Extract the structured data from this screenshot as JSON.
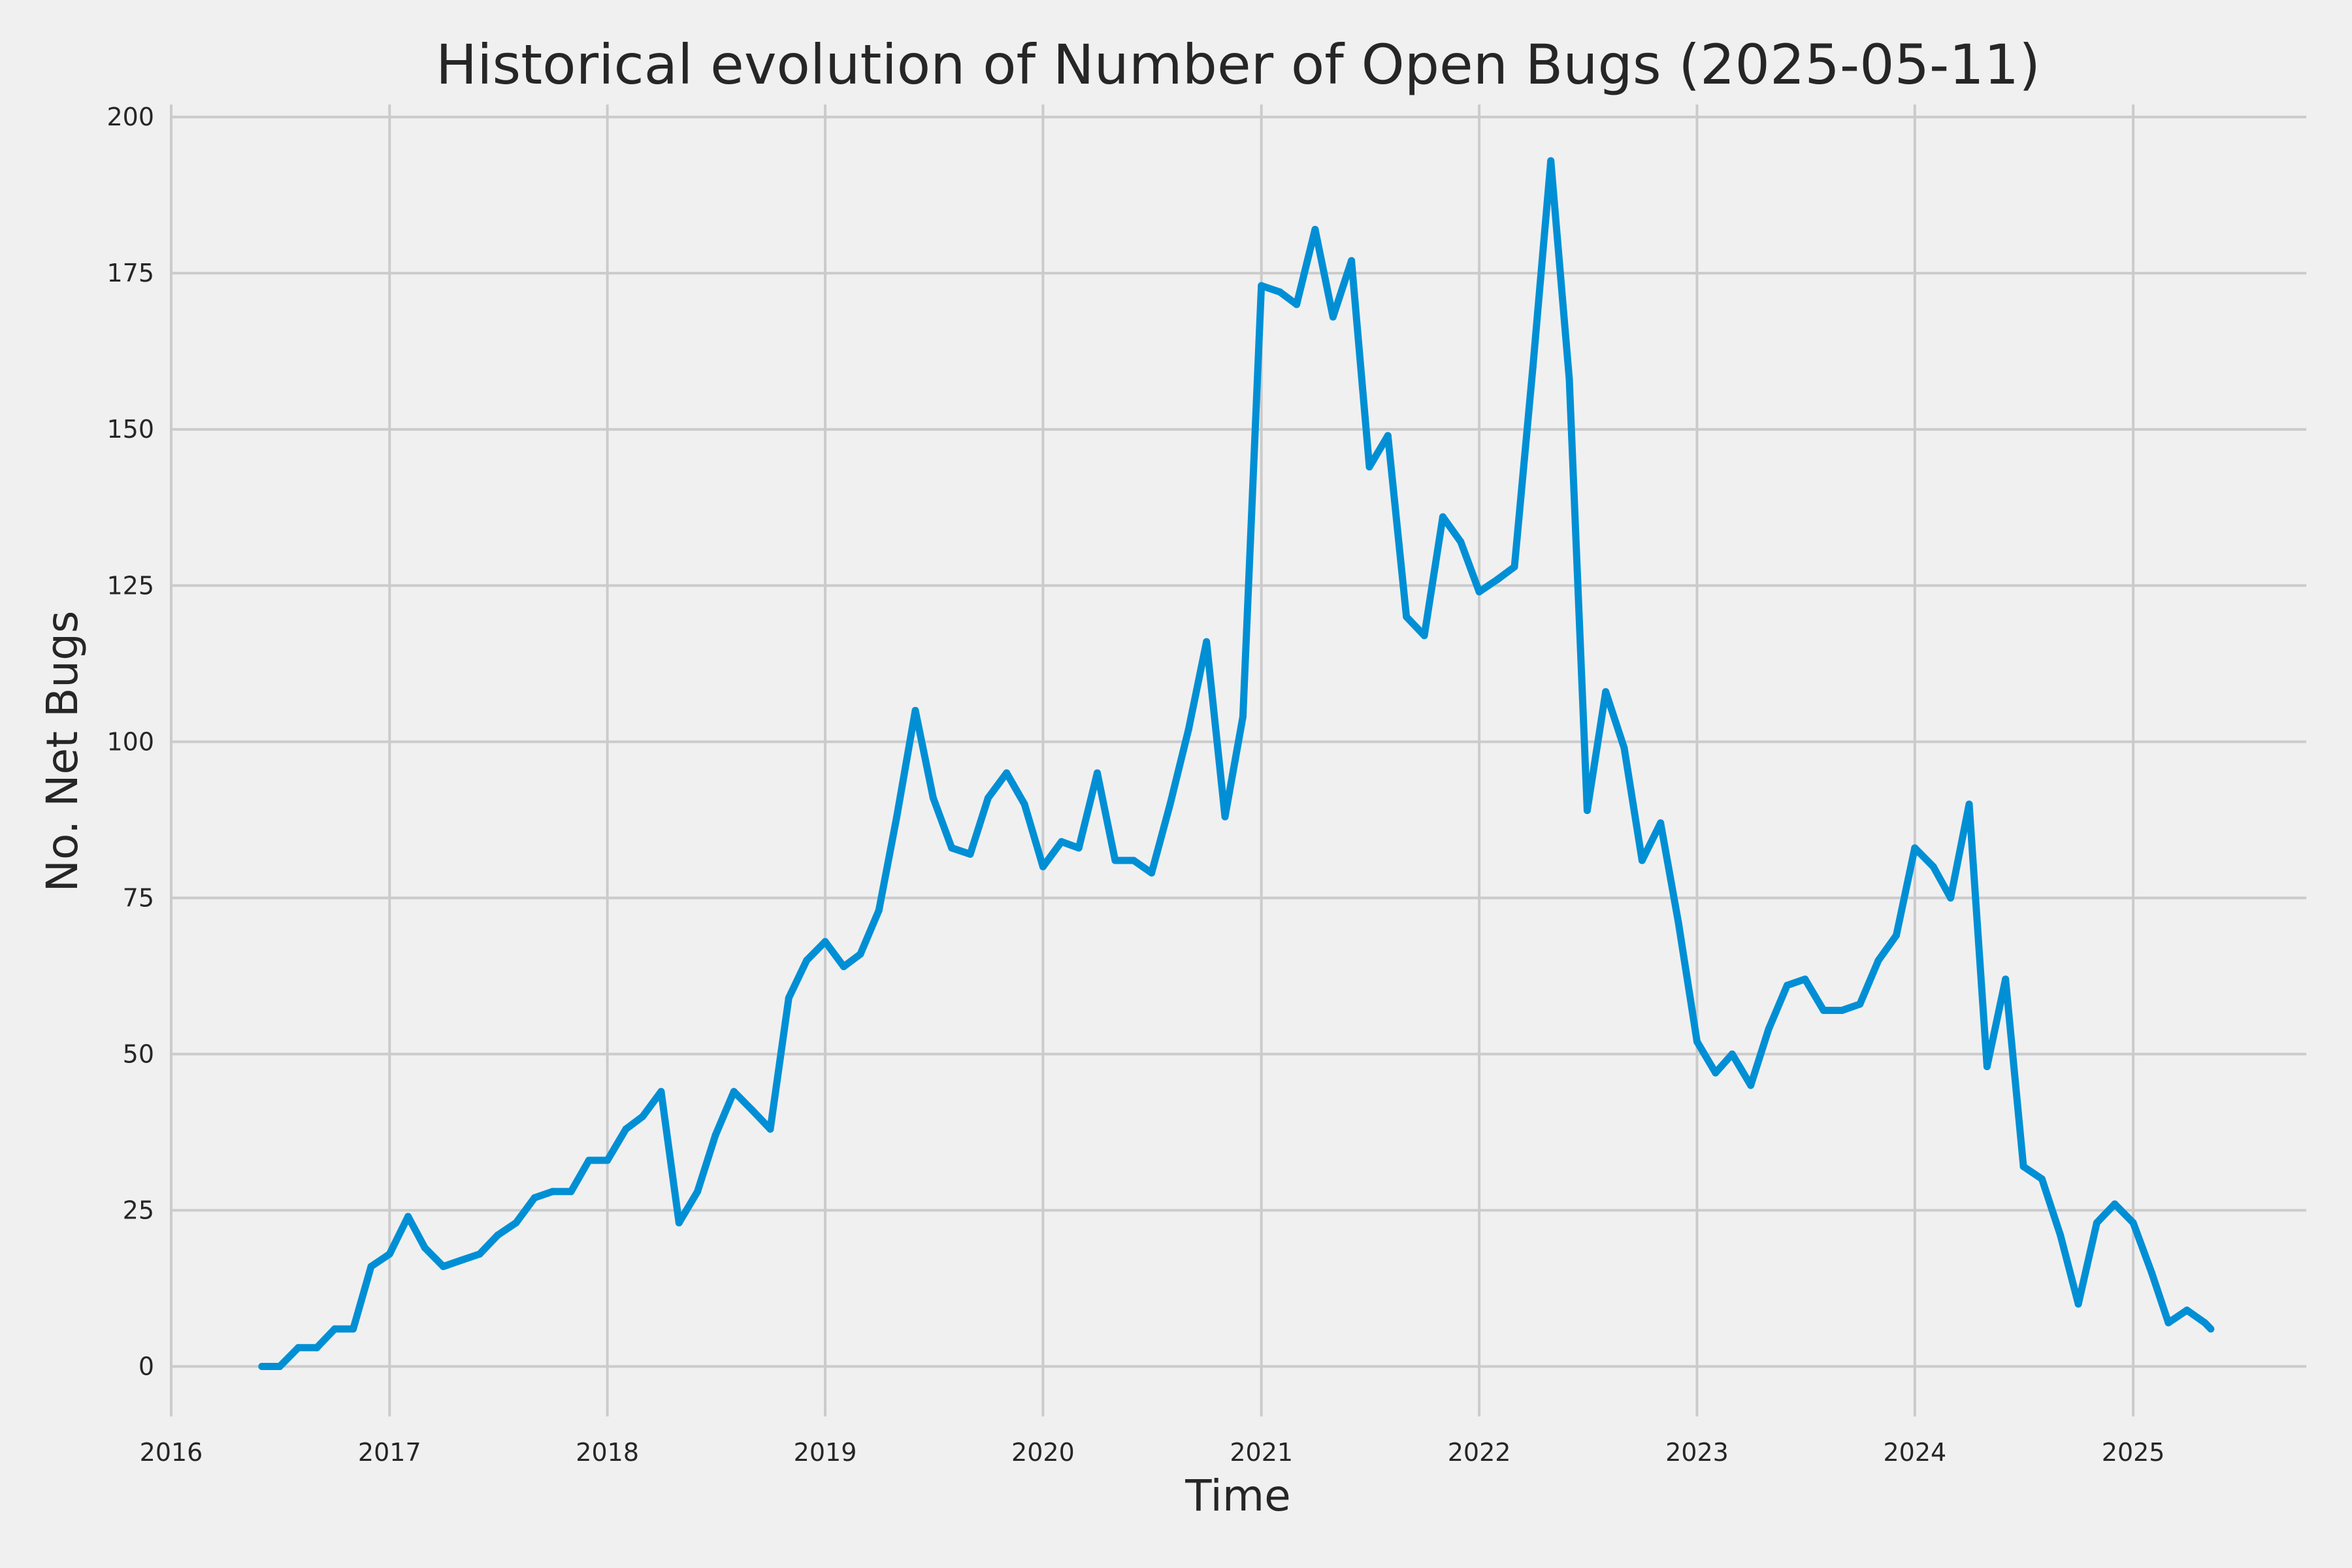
{
  "chart_data": {
    "type": "line",
    "title": "Historical evolution of Number of Open Bugs (2025-05-11)",
    "xlabel": "Time",
    "ylabel": "No. Net Bugs",
    "xlim": [
      "2016-01-01",
      "2025-10-18"
    ],
    "ylim": [
      -8,
      202
    ],
    "x_ticks": [
      "2016",
      "2017",
      "2018",
      "2019",
      "2020",
      "2021",
      "2022",
      "2023",
      "2024",
      "2025"
    ],
    "y_ticks": [
      0,
      25,
      50,
      75,
      100,
      125,
      150,
      175,
      200
    ],
    "grid": true,
    "legend": "none",
    "colors": {
      "line": "#008fd5",
      "shadow": "#bfcfd8",
      "grid": "#cbcbcb",
      "background": "#f0f0f0"
    },
    "series": [
      {
        "x": [
          "2016-06-01",
          "2016-07-01",
          "2016-08-01",
          "2016-09-01",
          "2016-10-01",
          "2016-11-01",
          "2016-12-01",
          "2017-01-01",
          "2017-02-01",
          "2017-03-01",
          "2017-04-01",
          "2017-05-01",
          "2017-06-01",
          "2017-07-01",
          "2017-08-01",
          "2017-09-01",
          "2017-10-01",
          "2017-11-01",
          "2017-12-01",
          "2018-01-01",
          "2018-02-01",
          "2018-03-01",
          "2018-04-01",
          "2018-05-01",
          "2018-06-01",
          "2018-07-01",
          "2018-08-01",
          "2018-09-01",
          "2018-10-01",
          "2018-11-01",
          "2018-12-01",
          "2019-01-01",
          "2019-02-01",
          "2019-03-01",
          "2019-04-01",
          "2019-05-01",
          "2019-06-01",
          "2019-07-01",
          "2019-08-01",
          "2019-09-01",
          "2019-10-01",
          "2019-11-01",
          "2019-12-01",
          "2020-01-01",
          "2020-02-01",
          "2020-03-01",
          "2020-04-01",
          "2020-05-01",
          "2020-06-01",
          "2020-07-01",
          "2020-08-01",
          "2020-09-01",
          "2020-10-01",
          "2020-11-01",
          "2020-12-01",
          "2021-01-01",
          "2021-02-01",
          "2021-03-01",
          "2021-04-01",
          "2021-05-01",
          "2021-06-01",
          "2021-07-01",
          "2021-08-01",
          "2021-09-01",
          "2021-10-01",
          "2021-11-01",
          "2021-12-01",
          "2022-01-01",
          "2022-02-01",
          "2022-03-01",
          "2022-04-01",
          "2022-05-01",
          "2022-06-01",
          "2022-07-01",
          "2022-08-01",
          "2022-09-01",
          "2022-10-01",
          "2022-11-01",
          "2022-12-01",
          "2023-01-01",
          "2023-02-01",
          "2023-03-01",
          "2023-04-01",
          "2023-05-01",
          "2023-06-01",
          "2023-07-01",
          "2023-08-01",
          "2023-09-01",
          "2023-10-01",
          "2023-11-01",
          "2023-12-01",
          "2024-01-01",
          "2024-02-01",
          "2024-03-01",
          "2024-04-01",
          "2024-05-01",
          "2024-06-01",
          "2024-07-01",
          "2024-08-01",
          "2024-09-01",
          "2024-10-01",
          "2024-11-01",
          "2024-12-01",
          "2025-01-01",
          "2025-02-01",
          "2025-03-01",
          "2025-04-01",
          "2025-05-01",
          "2025-05-11"
        ],
        "y": [
          0,
          0,
          3,
          3,
          6,
          6,
          16,
          18,
          24,
          19,
          16,
          17,
          18,
          21,
          23,
          27,
          28,
          28,
          33,
          33,
          38,
          40,
          44,
          23,
          28,
          37,
          44,
          41,
          38,
          59,
          65,
          68,
          64,
          66,
          73,
          88,
          105,
          91,
          83,
          82,
          91,
          95,
          90,
          80,
          84,
          83,
          95,
          81,
          81,
          79,
          90,
          102,
          116,
          88,
          104,
          173,
          172,
          170,
          182,
          168,
          177,
          144,
          149,
          120,
          117,
          136,
          132,
          124,
          126,
          128,
          160,
          193,
          158,
          89,
          108,
          99,
          81,
          87,
          71,
          52,
          47,
          50,
          45,
          54,
          61,
          62,
          57,
          57,
          58,
          65,
          69,
          83,
          80,
          75,
          90,
          48,
          62,
          32,
          30,
          21,
          10,
          23,
          26,
          23,
          15,
          7,
          9,
          7,
          6
        ]
      }
    ]
  }
}
